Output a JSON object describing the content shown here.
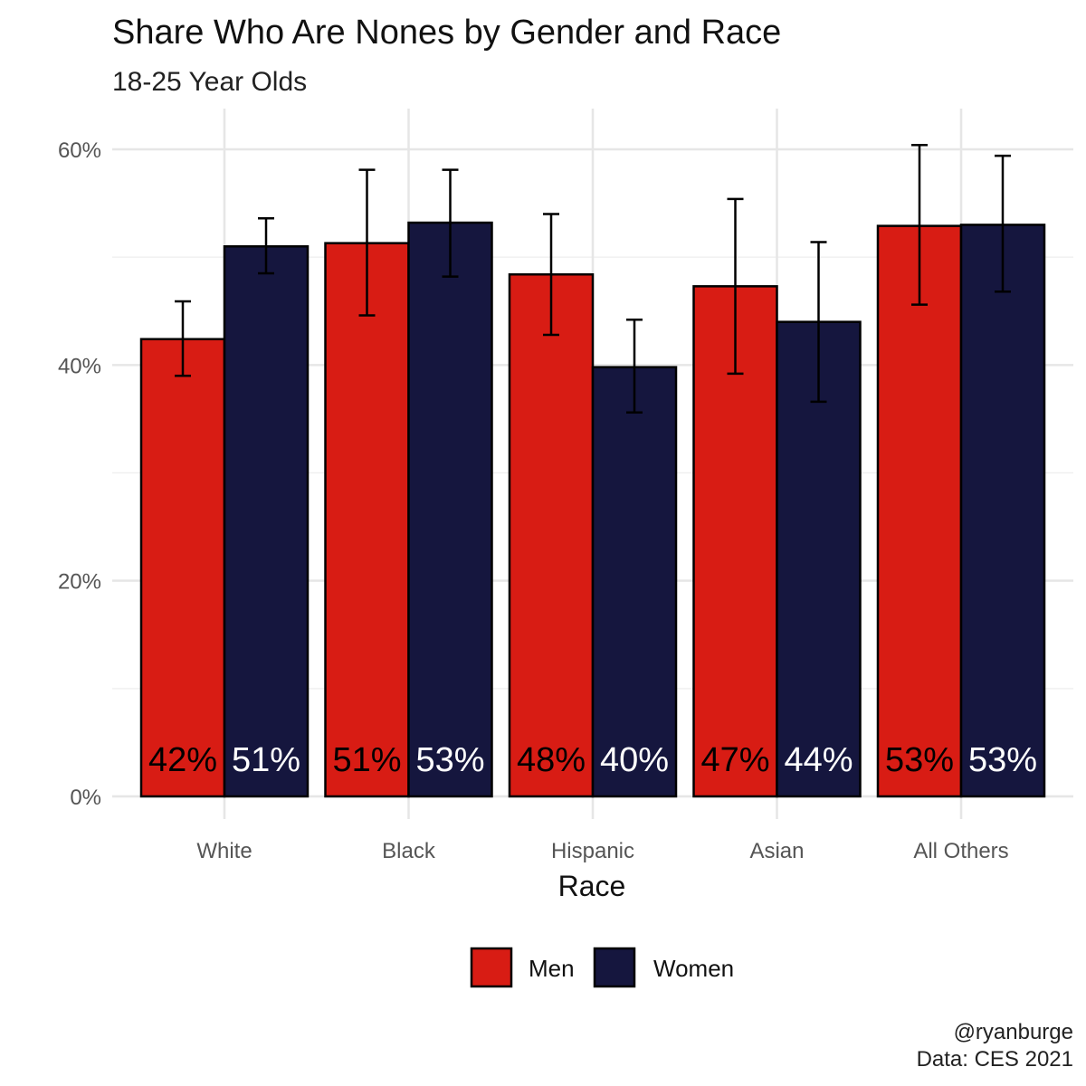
{
  "chart_data": {
    "type": "bar",
    "title": "Share Who Are Nones by Gender and Race",
    "subtitle": "18-25 Year Olds",
    "xlabel": "Race",
    "ylabel": "",
    "categories": [
      "White",
      "Black",
      "Hispanic",
      "Asian",
      "All Others"
    ],
    "ylim": [
      0,
      0.63
    ],
    "yticks": [
      0,
      0.2,
      0.4,
      0.6
    ],
    "ytick_labels": [
      "0%",
      "20%",
      "40%",
      "60%"
    ],
    "grid": true,
    "legend_position": "bottom",
    "series": [
      {
        "name": "Men",
        "color": "#d81c14",
        "label_color": "#000000",
        "values": [
          0.424,
          0.513,
          0.484,
          0.473,
          0.529
        ],
        "labels": [
          "42%",
          "51%",
          "48%",
          "47%",
          "53%"
        ],
        "error_low": [
          0.39,
          0.446,
          0.428,
          0.392,
          0.456
        ],
        "error_high": [
          0.459,
          0.581,
          0.54,
          0.554,
          0.604
        ]
      },
      {
        "name": "Women",
        "color": "#15163e",
        "label_color": "#ffffff",
        "values": [
          0.51,
          0.532,
          0.398,
          0.44,
          0.53
        ],
        "labels": [
          "51%",
          "53%",
          "40%",
          "44%",
          "53%"
        ],
        "error_low": [
          0.485,
          0.482,
          0.356,
          0.366,
          0.468
        ],
        "error_high": [
          0.536,
          0.581,
          0.442,
          0.514,
          0.594
        ]
      }
    ]
  },
  "caption": {
    "author": "@ryanburge",
    "source": "Data: CES 2021"
  }
}
